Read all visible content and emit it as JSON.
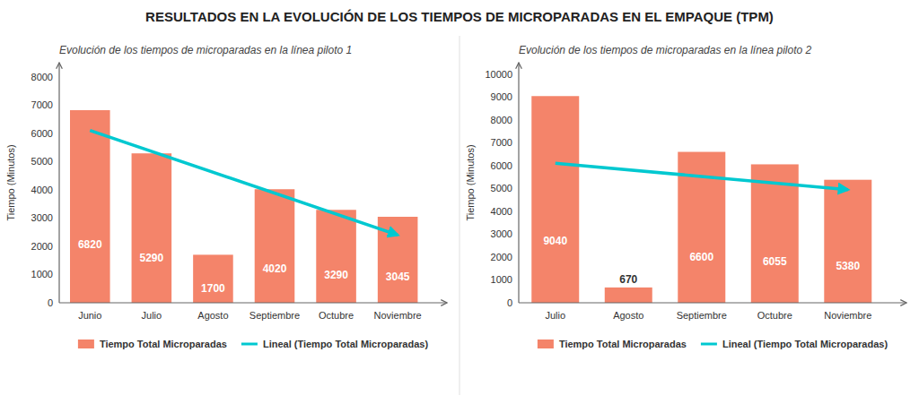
{
  "title": "RESULTADOS EN LA EVOLUCIÓN DE LOS TIEMPOS DE MICROPARADAS EN EL EMPAQUE (TPM)",
  "chart_data": [
    {
      "type": "bar",
      "subtitle": "Evolución de los tiempos de microparadas en la línea piloto 1",
      "categories": [
        "Junio",
        "Julio",
        "Agosto",
        "Septiembre",
        "Octubre",
        "Noviembre"
      ],
      "series": [
        {
          "name": "Tiempo Total Microparadas",
          "type": "bar",
          "color": "#f4846a",
          "values": [
            6820,
            5290,
            1700,
            4020,
            3290,
            3045
          ]
        },
        {
          "name": "Lineal (Tiempo Total Microparadas)",
          "type": "line",
          "color": "#00c8d0",
          "marker": "arrow",
          "x": [
            "Junio",
            "Noviembre"
          ],
          "values": [
            6100,
            2400
          ]
        }
      ],
      "ylim": [
        0,
        8500
      ],
      "yticks": [
        0,
        1000,
        2000,
        3000,
        4000,
        5000,
        6000,
        7000,
        8000
      ],
      "y_label": "Tiempo (Minutos)",
      "data_labels": true,
      "grid": false,
      "legend": "bottom"
    },
    {
      "type": "bar",
      "subtitle": "Evolución de los tiempos de microparadas en la línea piloto 2",
      "categories": [
        "Julio",
        "Agosto",
        "Septiembre",
        "Octubre",
        "Noviembre"
      ],
      "series": [
        {
          "name": "Tiempo Total Microparadas",
          "type": "bar",
          "color": "#f4846a",
          "values": [
            9040,
            670,
            6600,
            6055,
            5380
          ]
        },
        {
          "name": "Lineal (Tiempo Total Microparadas)",
          "type": "line",
          "color": "#00c8d0",
          "marker": "arrow",
          "x": [
            "Julio",
            "Noviembre"
          ],
          "values": [
            6100,
            4950
          ]
        }
      ],
      "ylim": [
        0,
        10500
      ],
      "yticks": [
        0,
        1000,
        2000,
        3000,
        4000,
        5000,
        6000,
        7000,
        8000,
        9000,
        10000
      ],
      "y_label": "Tiempo (Minutos)",
      "data_labels": true,
      "grid": false,
      "legend": "bottom"
    }
  ]
}
